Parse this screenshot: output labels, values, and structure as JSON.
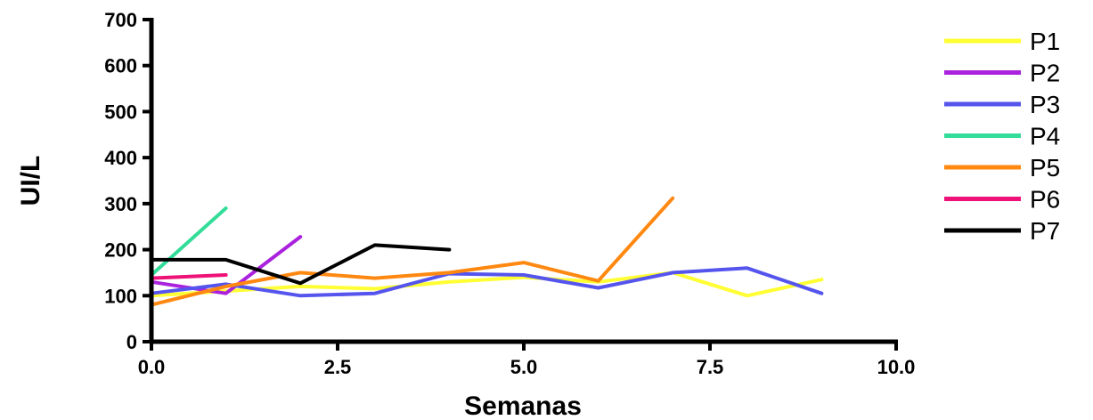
{
  "chart_data": {
    "type": "line",
    "xlabel": "Semanas",
    "ylabel": "UI/L",
    "xlim": [
      0,
      10
    ],
    "ylim": [
      0,
      700
    ],
    "xticks": [
      "0.0",
      "2.5",
      "5.0",
      "7.5",
      "10.0"
    ],
    "xtick_values": [
      0,
      2.5,
      5,
      7.5,
      10
    ],
    "yticks": [
      "0",
      "100",
      "200",
      "300",
      "400",
      "500",
      "600",
      "700"
    ],
    "ytick_values": [
      0,
      100,
      200,
      300,
      400,
      500,
      600,
      700
    ],
    "grid": false,
    "legend_position": "right",
    "series": [
      {
        "name": "P1",
        "color": "#ffff33",
        "x": [
          0,
          1,
          2,
          3,
          4,
          5,
          6,
          7,
          8,
          9
        ],
        "y": [
          100,
          110,
          120,
          115,
          130,
          140,
          130,
          150,
          100,
          135
        ]
      },
      {
        "name": "P2",
        "color": "#aa22dd",
        "x": [
          0,
          1,
          2
        ],
        "y": [
          130,
          105,
          228
        ]
      },
      {
        "name": "P3",
        "color": "#5555ee",
        "x": [
          0,
          1,
          2,
          3,
          4,
          5,
          6,
          7,
          8,
          9
        ],
        "y": [
          105,
          125,
          100,
          105,
          148,
          145,
          117,
          150,
          160,
          105
        ]
      },
      {
        "name": "P4",
        "color": "#33dd99",
        "x": [
          0,
          1
        ],
        "y": [
          145,
          290
        ]
      },
      {
        "name": "P5",
        "color": "#ff8811",
        "x": [
          0,
          1,
          2,
          3,
          4,
          5,
          6,
          7
        ],
        "y": [
          80,
          120,
          150,
          138,
          150,
          172,
          132,
          312
        ]
      },
      {
        "name": "P6",
        "color": "#ee1177",
        "x": [
          0,
          1
        ],
        "y": [
          138,
          145
        ]
      },
      {
        "name": "P7",
        "color": "#000000",
        "x": [
          0,
          1,
          2,
          3,
          4
        ],
        "y": [
          178,
          178,
          127,
          210,
          200
        ]
      }
    ]
  }
}
